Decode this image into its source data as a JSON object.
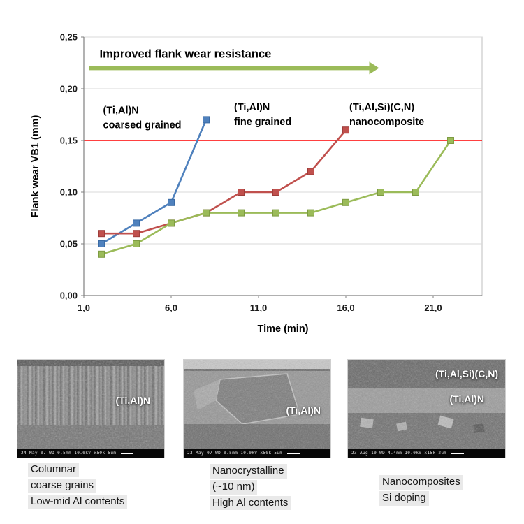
{
  "chart_data": {
    "type": "line",
    "title": "",
    "xlabel": "Time (min)",
    "ylabel": "Flank wear VB1 (mm)",
    "xlim": [
      1,
      23.8
    ],
    "ylim": [
      0,
      0.25
    ],
    "x_ticks": [
      1,
      6,
      11,
      16,
      21
    ],
    "x_tick_labels": [
      "1,0",
      "6,0",
      "11,0",
      "16,0",
      "21,0"
    ],
    "y_ticks": [
      0,
      0.05,
      0.1,
      0.15,
      0.2,
      0.25
    ],
    "y_tick_labels": [
      "0,00",
      "0,05",
      "0,10",
      "0,15",
      "0,20",
      "0,25"
    ],
    "grid": "horizontal",
    "legend": "none",
    "reference_line": {
      "y": 0.15,
      "color": "#ff0000"
    },
    "series": [
      {
        "name": "(Ti,Al)N coarsed grained",
        "color": "#4f81bd",
        "edge": "#3a6ba5",
        "marker": "square",
        "x": [
          2,
          4,
          6,
          8
        ],
        "y": [
          0.05,
          0.07,
          0.09,
          0.17
        ]
      },
      {
        "name": "(Ti,Al)N fine grained",
        "color": "#c0504d",
        "edge": "#9e3d3a",
        "marker": "square",
        "x": [
          2,
          4,
          6,
          8,
          10,
          12,
          14,
          16
        ],
        "y": [
          0.06,
          0.06,
          0.07,
          0.08,
          0.1,
          0.1,
          0.12,
          0.16
        ]
      },
      {
        "name": "(Ti,Al,Si)(C,N) nanocomposite",
        "color": "#9bbb59",
        "edge": "#7e9c43",
        "marker": "square",
        "x": [
          2,
          4,
          6,
          8,
          10,
          12,
          14,
          16,
          18,
          20,
          22
        ],
        "y": [
          0.04,
          0.05,
          0.07,
          0.08,
          0.08,
          0.08,
          0.08,
          0.09,
          0.1,
          0.1,
          0.15
        ]
      }
    ],
    "annotation_title": {
      "text": "Improved flank wear resistance",
      "x": 1.9,
      "y": 0.23
    },
    "arrow": {
      "x1": 1.3,
      "x2": 17.9,
      "y": 0.22,
      "color": "#9bbb59"
    },
    "series_labels": [
      {
        "lines": [
          "(Ti,Al)N",
          "coarsed grained"
        ],
        "x": 2.1,
        "y": 0.176
      },
      {
        "lines": [
          "(Ti,Al)N",
          "fine grained"
        ],
        "x": 9.6,
        "y": 0.179
      },
      {
        "lines": [
          "(Ti,Al,Si)(C,N)",
          "nanocomposite"
        ],
        "x": 16.2,
        "y": 0.179
      }
    ]
  },
  "micrographs": [
    {
      "overlay_labels": [
        "(Ti,Al)N"
      ],
      "status_bar": "24-May-07  WD 0.5mm 10.0kV x50k  5um",
      "caption_lines": [
        "Columnar",
        "coarse grains",
        "Low-mid Al contents"
      ]
    },
    {
      "overlay_labels": [
        "(Ti,Al)N"
      ],
      "status_bar": "23-May-07  WD 0.5mm 10.0kV x50k  5um",
      "caption_lines": [
        "Nanocrystalline",
        "(~10 nm)",
        "High Al contents"
      ]
    },
    {
      "overlay_labels": [
        "(Ti,Al,Si)(C,N)",
        "(Ti,Al)N"
      ],
      "status_bar": "23-Aug-10  WD 4.4mm 10.0kV x15k  2um",
      "caption_lines": [
        "Nanocomposites",
        "Si doping"
      ]
    }
  ]
}
